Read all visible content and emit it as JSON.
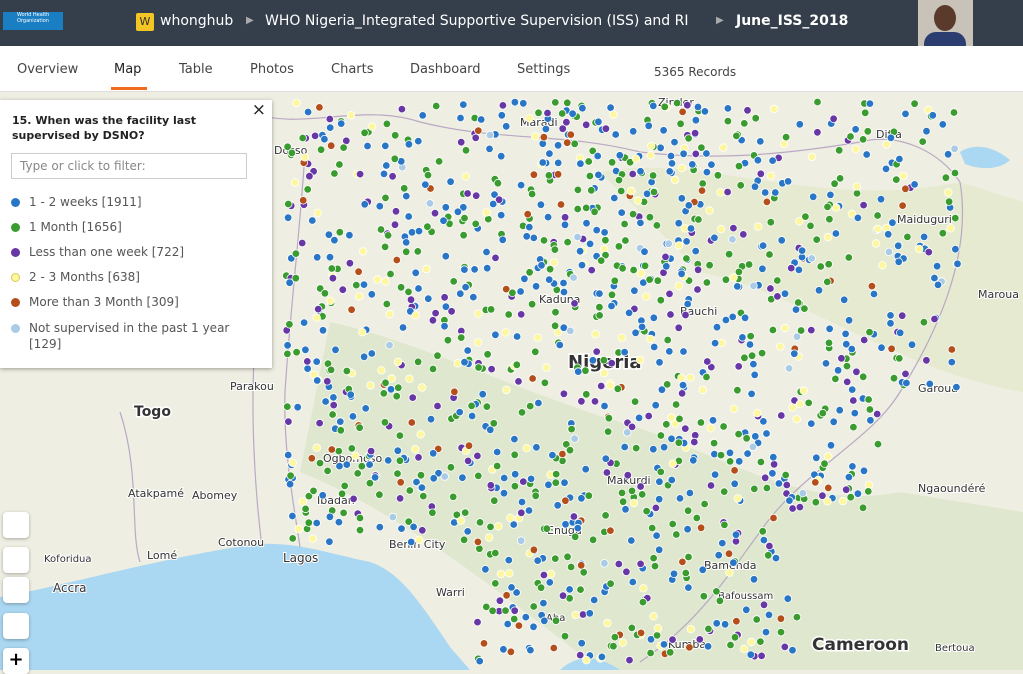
{
  "header": {
    "logo_text": "World Health Organization",
    "workspace_badge": "W",
    "workspace": "whonghub",
    "project": "WHO Nigeria_Integrated Supportive Supervision (ISS) and RI",
    "form": "June_ISS_2018"
  },
  "tabs": [
    "Overview",
    "Map",
    "Table",
    "Photos",
    "Charts",
    "Dashboard",
    "Settings"
  ],
  "active_tab": "Map",
  "records": "5365 Records",
  "legend": {
    "close": "×",
    "question": "15. When was the facility last supervised by DSNO?",
    "filter_placeholder": "Type or click to filter:",
    "items": [
      {
        "label": "1 - 2 weeks [1911]",
        "color": "#2a76c6"
      },
      {
        "label": "1 Month [1656]",
        "color": "#3a9b2e"
      },
      {
        "label": "Less than one week [722]",
        "color": "#6837a6"
      },
      {
        "label": "2 - 3 Months [638]",
        "color": "#fdf7a0"
      },
      {
        "label": "More than 3 Month [309]",
        "color": "#b44f1c"
      },
      {
        "label": "Not supervised in the past 1 year [129]",
        "color": "#a9cbe6"
      }
    ]
  },
  "map": {
    "labels": [
      "Zinder",
      "Maradi",
      "Dosso",
      "Diffa",
      "Maiduguri",
      "Maroua",
      "Kaduna",
      "Bauchi",
      "Nigeria",
      "Parakou",
      "Togo",
      "Garoua",
      "Atakpamé",
      "Abomey",
      "Ogbomoso",
      "Ibadan",
      "Cotonou",
      "Lagos",
      "Benin City",
      "Makurdi",
      "Enugu",
      "Ngaoundéré",
      "Koforidua",
      "Lomé",
      "Accra",
      "Warri",
      "Bamenda",
      "Bafoussam",
      "Kumba",
      "Aba",
      "Cameroon",
      "Bertoua"
    ]
  },
  "zoom_in": "+"
}
